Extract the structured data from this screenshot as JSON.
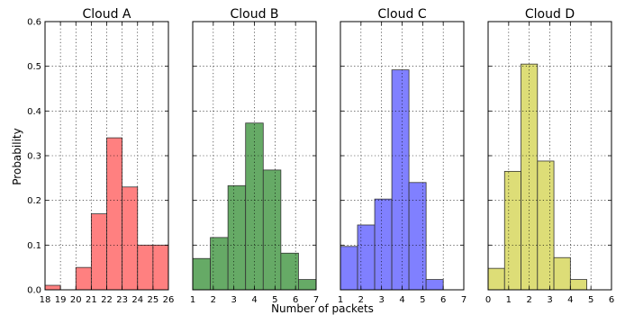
{
  "figure": {
    "ylabel": "Probability",
    "xlabel": "Number of packets"
  },
  "chart_data": [
    {
      "type": "bar",
      "title": "Cloud A",
      "color": "#ff8080",
      "xlim": [
        18,
        26
      ],
      "ylim": [
        0,
        0.6
      ],
      "xticks": [
        18,
        19,
        20,
        21,
        22,
        23,
        24,
        25,
        26
      ],
      "yticks": [
        0.0,
        0.1,
        0.2,
        0.3,
        0.4,
        0.5,
        0.6
      ],
      "ytick_labels": [
        "0.0",
        "0.1",
        "0.2",
        "0.3",
        "0.4",
        "0.5",
        "0.6"
      ],
      "bins": [
        [
          18,
          19
        ],
        [
          19,
          20
        ],
        [
          20,
          21
        ],
        [
          21,
          22
        ],
        [
          22,
          23
        ],
        [
          23,
          24
        ],
        [
          24,
          25
        ],
        [
          25,
          26
        ]
      ],
      "values": [
        0.01,
        0.0,
        0.05,
        0.17,
        0.34,
        0.23,
        0.1,
        0.1
      ]
    },
    {
      "type": "bar",
      "title": "Cloud B",
      "color": "#66aa66",
      "xlim": [
        1,
        7
      ],
      "ylim": [
        0,
        0.6
      ],
      "xticks": [
        1,
        2,
        3,
        4,
        5,
        6,
        7
      ],
      "yticks": [
        0.0,
        0.1,
        0.2,
        0.3,
        0.4,
        0.5,
        0.6
      ],
      "bins": [
        [
          1,
          1.857
        ],
        [
          1.857,
          2.714
        ],
        [
          2.714,
          3.571
        ],
        [
          3.571,
          4.429
        ],
        [
          4.429,
          5.286
        ],
        [
          5.286,
          6.143
        ],
        [
          6.143,
          7
        ]
      ],
      "values": [
        0.07,
        0.117,
        0.233,
        0.373,
        0.268,
        0.082,
        0.023
      ]
    },
    {
      "type": "bar",
      "title": "Cloud C",
      "color": "#8080ff",
      "xlim": [
        1,
        7
      ],
      "ylim": [
        0,
        0.6
      ],
      "xticks": [
        1,
        2,
        3,
        4,
        5,
        6,
        7
      ],
      "yticks": [
        0.0,
        0.1,
        0.2,
        0.3,
        0.4,
        0.5,
        0.6
      ],
      "bins": [
        [
          1,
          1.833
        ],
        [
          1.833,
          2.667
        ],
        [
          2.667,
          3.5
        ],
        [
          3.5,
          4.333
        ],
        [
          4.333,
          5.167
        ],
        [
          5.167,
          6
        ]
      ],
      "values": [
        0.097,
        0.145,
        0.203,
        0.492,
        0.24,
        0.023
      ]
    },
    {
      "type": "bar",
      "title": "Cloud D",
      "color": "#dddd77",
      "xlim": [
        0,
        6
      ],
      "ylim": [
        0,
        0.6
      ],
      "xticks": [
        0,
        1,
        2,
        3,
        4,
        5,
        6
      ],
      "yticks": [
        0.0,
        0.1,
        0.2,
        0.3,
        0.4,
        0.5,
        0.6
      ],
      "bins": [
        [
          0,
          0.8
        ],
        [
          0.8,
          1.6
        ],
        [
          1.6,
          2.4
        ],
        [
          2.4,
          3.2
        ],
        [
          3.2,
          4.0
        ],
        [
          4.0,
          4.8
        ]
      ],
      "values": [
        0.048,
        0.265,
        0.505,
        0.288,
        0.072,
        0.023
      ]
    }
  ]
}
